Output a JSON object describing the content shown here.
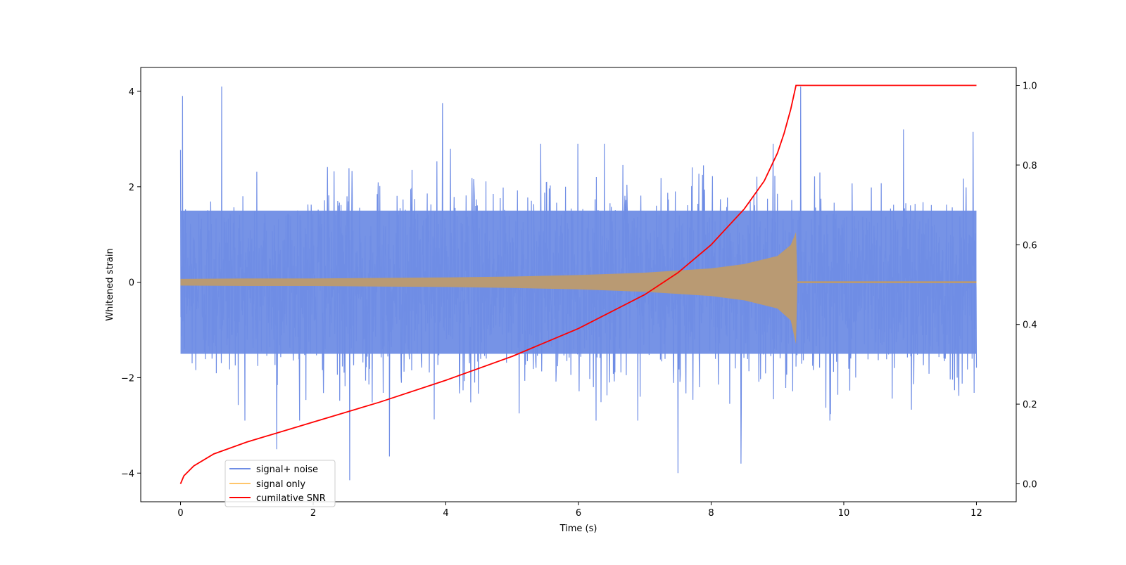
{
  "chart_data": {
    "type": "line",
    "xlabel": "Time (s)",
    "ylabel_left": "Whitened strain",
    "ylabel_right": "",
    "xlim": [
      -0.6,
      12.6
    ],
    "ylim_left": [
      -4.6,
      4.5
    ],
    "ylim_right": [
      -0.045,
      1.045
    ],
    "xticks": [
      0,
      2,
      4,
      6,
      8,
      10,
      12
    ],
    "yticks_left": [
      -4,
      -2,
      0,
      2,
      4
    ],
    "yticks_right": [
      0.0,
      0.2,
      0.4,
      0.6,
      0.8,
      1.0
    ],
    "xtick_labels": [
      "0",
      "2",
      "4",
      "6",
      "8",
      "10",
      "12"
    ],
    "ytick_labels_left": [
      "−4",
      "−2",
      "0",
      "2",
      "4"
    ],
    "ytick_labels_right": [
      "0.0",
      "0.2",
      "0.4",
      "0.6",
      "0.8",
      "1.0"
    ],
    "grid": false,
    "legend_position": "lower-left",
    "series": [
      {
        "name": "signal+ noise",
        "axis": "left",
        "color": "#6f8de5",
        "kind": "noisy-strain",
        "x_range": [
          0,
          12
        ],
        "noise_band": [
          -1.5,
          1.5
        ],
        "notable_spikes": [
          {
            "x": 0.03,
            "y": 3.9
          },
          {
            "x": 0.62,
            "y": 4.1
          },
          {
            "x": 1.45,
            "y": -3.5
          },
          {
            "x": 2.55,
            "y": -4.15
          },
          {
            "x": 3.15,
            "y": -3.65
          },
          {
            "x": 3.95,
            "y": 3.75
          },
          {
            "x": 7.5,
            "y": -4.0
          },
          {
            "x": 8.45,
            "y": -3.8
          },
          {
            "x": 9.35,
            "y": 4.1
          },
          {
            "x": 10.9,
            "y": 3.2
          },
          {
            "x": 11.95,
            "y": 3.15
          }
        ]
      },
      {
        "name": "signal only",
        "axis": "left",
        "color": "#ffc66b",
        "kind": "chirp-envelope",
        "x": [
          0,
          1,
          2,
          3,
          4,
          5,
          6,
          7,
          8,
          8.5,
          9.0,
          9.2,
          9.28,
          9.3,
          12.0
        ],
        "upper": [
          0.07,
          0.08,
          0.08,
          0.09,
          0.1,
          0.12,
          0.15,
          0.2,
          0.29,
          0.38,
          0.55,
          0.78,
          1.05,
          0.02,
          0.02
        ],
        "lower": [
          -0.07,
          -0.08,
          -0.08,
          -0.09,
          -0.1,
          -0.12,
          -0.15,
          -0.2,
          -0.29,
          -0.38,
          -0.55,
          -0.8,
          -1.3,
          -0.02,
          -0.02
        ]
      },
      {
        "name": "cumilative SNR",
        "axis": "right",
        "color": "#ff0000",
        "x": [
          0,
          0.05,
          0.2,
          0.5,
          1.0,
          2.0,
          3.0,
          4.0,
          5.0,
          6.0,
          7.0,
          7.5,
          8.0,
          8.5,
          8.8,
          9.0,
          9.1,
          9.2,
          9.28,
          12.0
        ],
        "y": [
          0.0,
          0.02,
          0.045,
          0.075,
          0.105,
          0.155,
          0.205,
          0.26,
          0.32,
          0.39,
          0.475,
          0.53,
          0.6,
          0.69,
          0.76,
          0.83,
          0.88,
          0.94,
          1.0,
          1.0
        ]
      }
    ]
  }
}
